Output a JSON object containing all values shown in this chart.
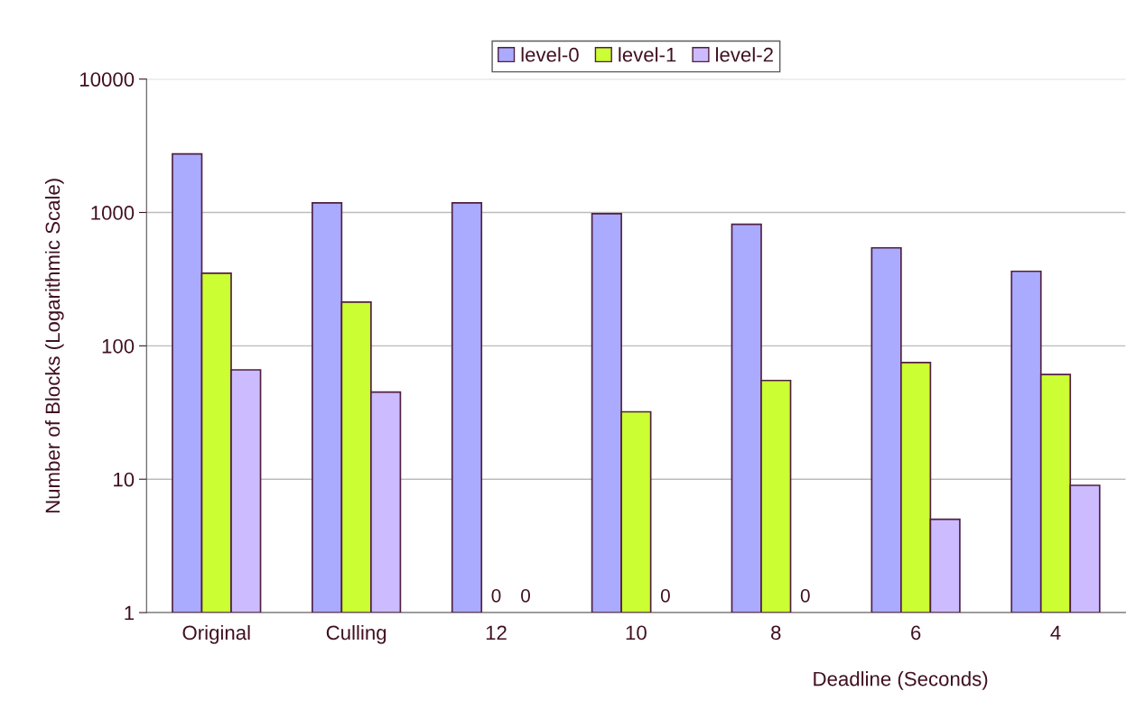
{
  "chart_data": {
    "type": "bar",
    "xlabel": "Deadline (Seconds)",
    "ylabel": "Number of Blocks (Logarithmic Scale)",
    "categories": [
      "Original",
      "Culling",
      "12",
      "10",
      "8",
      "6",
      "4"
    ],
    "series": [
      {
        "name": "level-0",
        "color": "#aaaaff",
        "values": [
          2750,
          1180,
          1180,
          980,
          815,
          543,
          362
        ]
      },
      {
        "name": "level-1",
        "color": "#ccff33",
        "values": [
          350,
          213,
          null,
          32,
          55,
          75,
          61
        ]
      },
      {
        "name": "level-2",
        "color": "#ccbbff",
        "values": [
          66,
          45,
          null,
          null,
          null,
          5,
          9
        ]
      }
    ],
    "annotations": [
      "0",
      "0",
      "0",
      "0"
    ],
    "log": "y",
    "ylim": [
      1,
      10000
    ],
    "yticks": [
      1,
      10,
      100,
      1000,
      10000
    ],
    "grid": "y",
    "legend": "top"
  }
}
